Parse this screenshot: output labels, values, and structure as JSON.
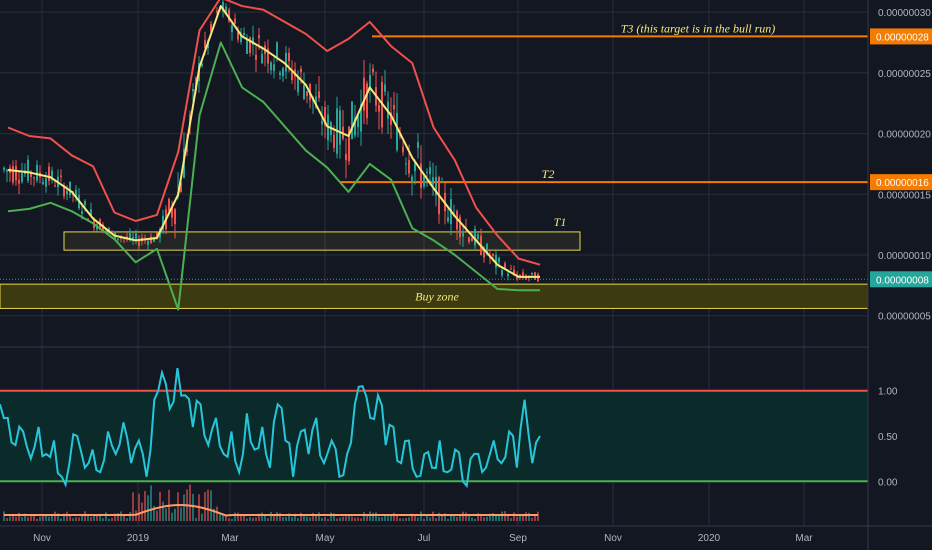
{
  "colors": {
    "background": "#131722",
    "grid": "#2a2e39",
    "upper_band": "#f0504b",
    "middle_band": "#f8e87a",
    "lower_band": "#4caf50",
    "candle_up": "#26a69a",
    "candle_down": "#ef5350",
    "target_line": "#f57c00",
    "zone_border": "#e6d84a",
    "zone_fill": "#3b3a10",
    "oscillator": "#26c6da",
    "osc_upper": "#f0504b",
    "osc_lower": "#4caf50",
    "osc_fill": "#0b2a2a",
    "volume_line": "#ff9b6a",
    "axis_text": "#b2b5be",
    "current_badge": "#26a69a",
    "target_badge": "#f57c00"
  },
  "chart_data": [
    {
      "type": "candlestick",
      "title": "",
      "ylim": [
        3e-08,
        3.1e-07
      ],
      "y_ticks": [
        {
          "value": 3e-07,
          "label": "0.00000030"
        },
        {
          "value": 2.5e-07,
          "label": "0.00000025"
        },
        {
          "value": 2e-07,
          "label": "0.00000020"
        },
        {
          "value": 1.5e-07,
          "label": "0.00000015"
        },
        {
          "value": 1e-07,
          "label": "0.00000010"
        },
        {
          "value": 5e-08,
          "label": "0.00000005"
        }
      ],
      "x_ticks": [
        "Nov",
        "2019",
        "Mar",
        "May",
        "Jul",
        "Sep",
        "Nov",
        "2020",
        "Mar"
      ],
      "series": [
        {
          "name": "upper",
          "values": [
            2.05e-07,
            1.98e-07,
            1.96e-07,
            1.82e-07,
            1.73e-07,
            1.35e-07,
            1.28e-07,
            1.33e-07,
            1.85e-07,
            2.85e-07,
            3.12e-07,
            3.05e-07,
            3.02e-07,
            2.92e-07,
            2.82e-07,
            2.68e-07,
            2.78e-07,
            2.92e-07,
            2.72e-07,
            2.58e-07,
            2.05e-07,
            1.78e-07,
            1.39e-07,
            1.16e-07,
            9.7e-08,
            9.2e-08
          ]
        },
        {
          "name": "middle",
          "values": [
            1.7e-07,
            1.68e-07,
            1.64e-07,
            1.52e-07,
            1.3e-07,
            1.16e-07,
            1.12e-07,
            1.14e-07,
            1.5e-07,
            2.55e-07,
            3.05e-07,
            2.8e-07,
            2.7e-07,
            2.58e-07,
            2.4e-07,
            2.06e-07,
            1.98e-07,
            2.38e-07,
            2.15e-07,
            1.8e-07,
            1.55e-07,
            1.32e-07,
            1.12e-07,
            9.2e-08,
            8.2e-08,
            8.2e-08
          ]
        },
        {
          "name": "lower",
          "values": [
            1.36e-07,
            1.38e-07,
            1.43e-07,
            1.36e-07,
            1.26e-07,
            1.13e-07,
            9.4e-08,
            1.05e-07,
            5.5e-08,
            2.15e-07,
            2.75e-07,
            2.38e-07,
            2.26e-07,
            2.06e-07,
            1.86e-07,
            1.72e-07,
            1.52e-07,
            1.75e-07,
            1.62e-07,
            1.22e-07,
            1.12e-07,
            1e-07,
            8.6e-08,
            7.2e-08,
            7.1e-08,
            7.1e-08
          ]
        }
      ],
      "current_price": {
        "value": 8e-08,
        "label": "0.00000008"
      },
      "targets": [
        {
          "label": "T3 (this target is in the bull run)",
          "value": 2.8e-07,
          "badge": "0.00000028"
        },
        {
          "label": "T2",
          "value": 1.6e-07,
          "badge": "0.00000016"
        }
      ],
      "zones": [
        {
          "label": "T1",
          "from": 1.04e-07,
          "to": 1.19e-07
        },
        {
          "label": "Buy zone",
          "from": 5.6e-08,
          "to": 7.6e-08
        }
      ]
    },
    {
      "type": "line",
      "title": "",
      "ylim": [
        -0.45,
        1.45
      ],
      "y_ticks": [
        {
          "value": 1.0,
          "label": "1.00"
        },
        {
          "value": 0.5,
          "label": "0.50"
        },
        {
          "value": 0.0,
          "label": "0.00"
        }
      ],
      "levels": [
        1.0,
        0.0
      ],
      "series": [
        {
          "name": "",
          "values": [
            0.85,
            0.7,
            0.4,
            0.55,
            0.25,
            0.6,
            0.3,
            0.45,
            0.05,
            0.2,
            0.5,
            0.15,
            0.35,
            0.1,
            0.55,
            0.3,
            0.65,
            0.2,
            0.45,
            0.05,
            0.9,
            1.2,
            0.8,
            1.25,
            0.95,
            0.6,
            0.85,
            0.4,
            0.7,
            0.3,
            0.55,
            0.1,
            0.75,
            0.35,
            0.6,
            0.15,
            0.85,
            0.45,
            0.05,
            0.55,
            0.3,
            0.7,
            0.2,
            0.45,
            0.05,
            0.3,
            0.85,
            1.05,
            0.7,
            0.95,
            0.4,
            0.6,
            0.2,
            0.45,
            0.05,
            0.3,
            0.15,
            0.45,
            0.1,
            0.35,
            0.0,
            0.25,
            0.3,
            0.15,
            0.45,
            0.2,
            0.55,
            0.15,
            0.9,
            0.2,
            0.5
          ]
        }
      ]
    }
  ]
}
